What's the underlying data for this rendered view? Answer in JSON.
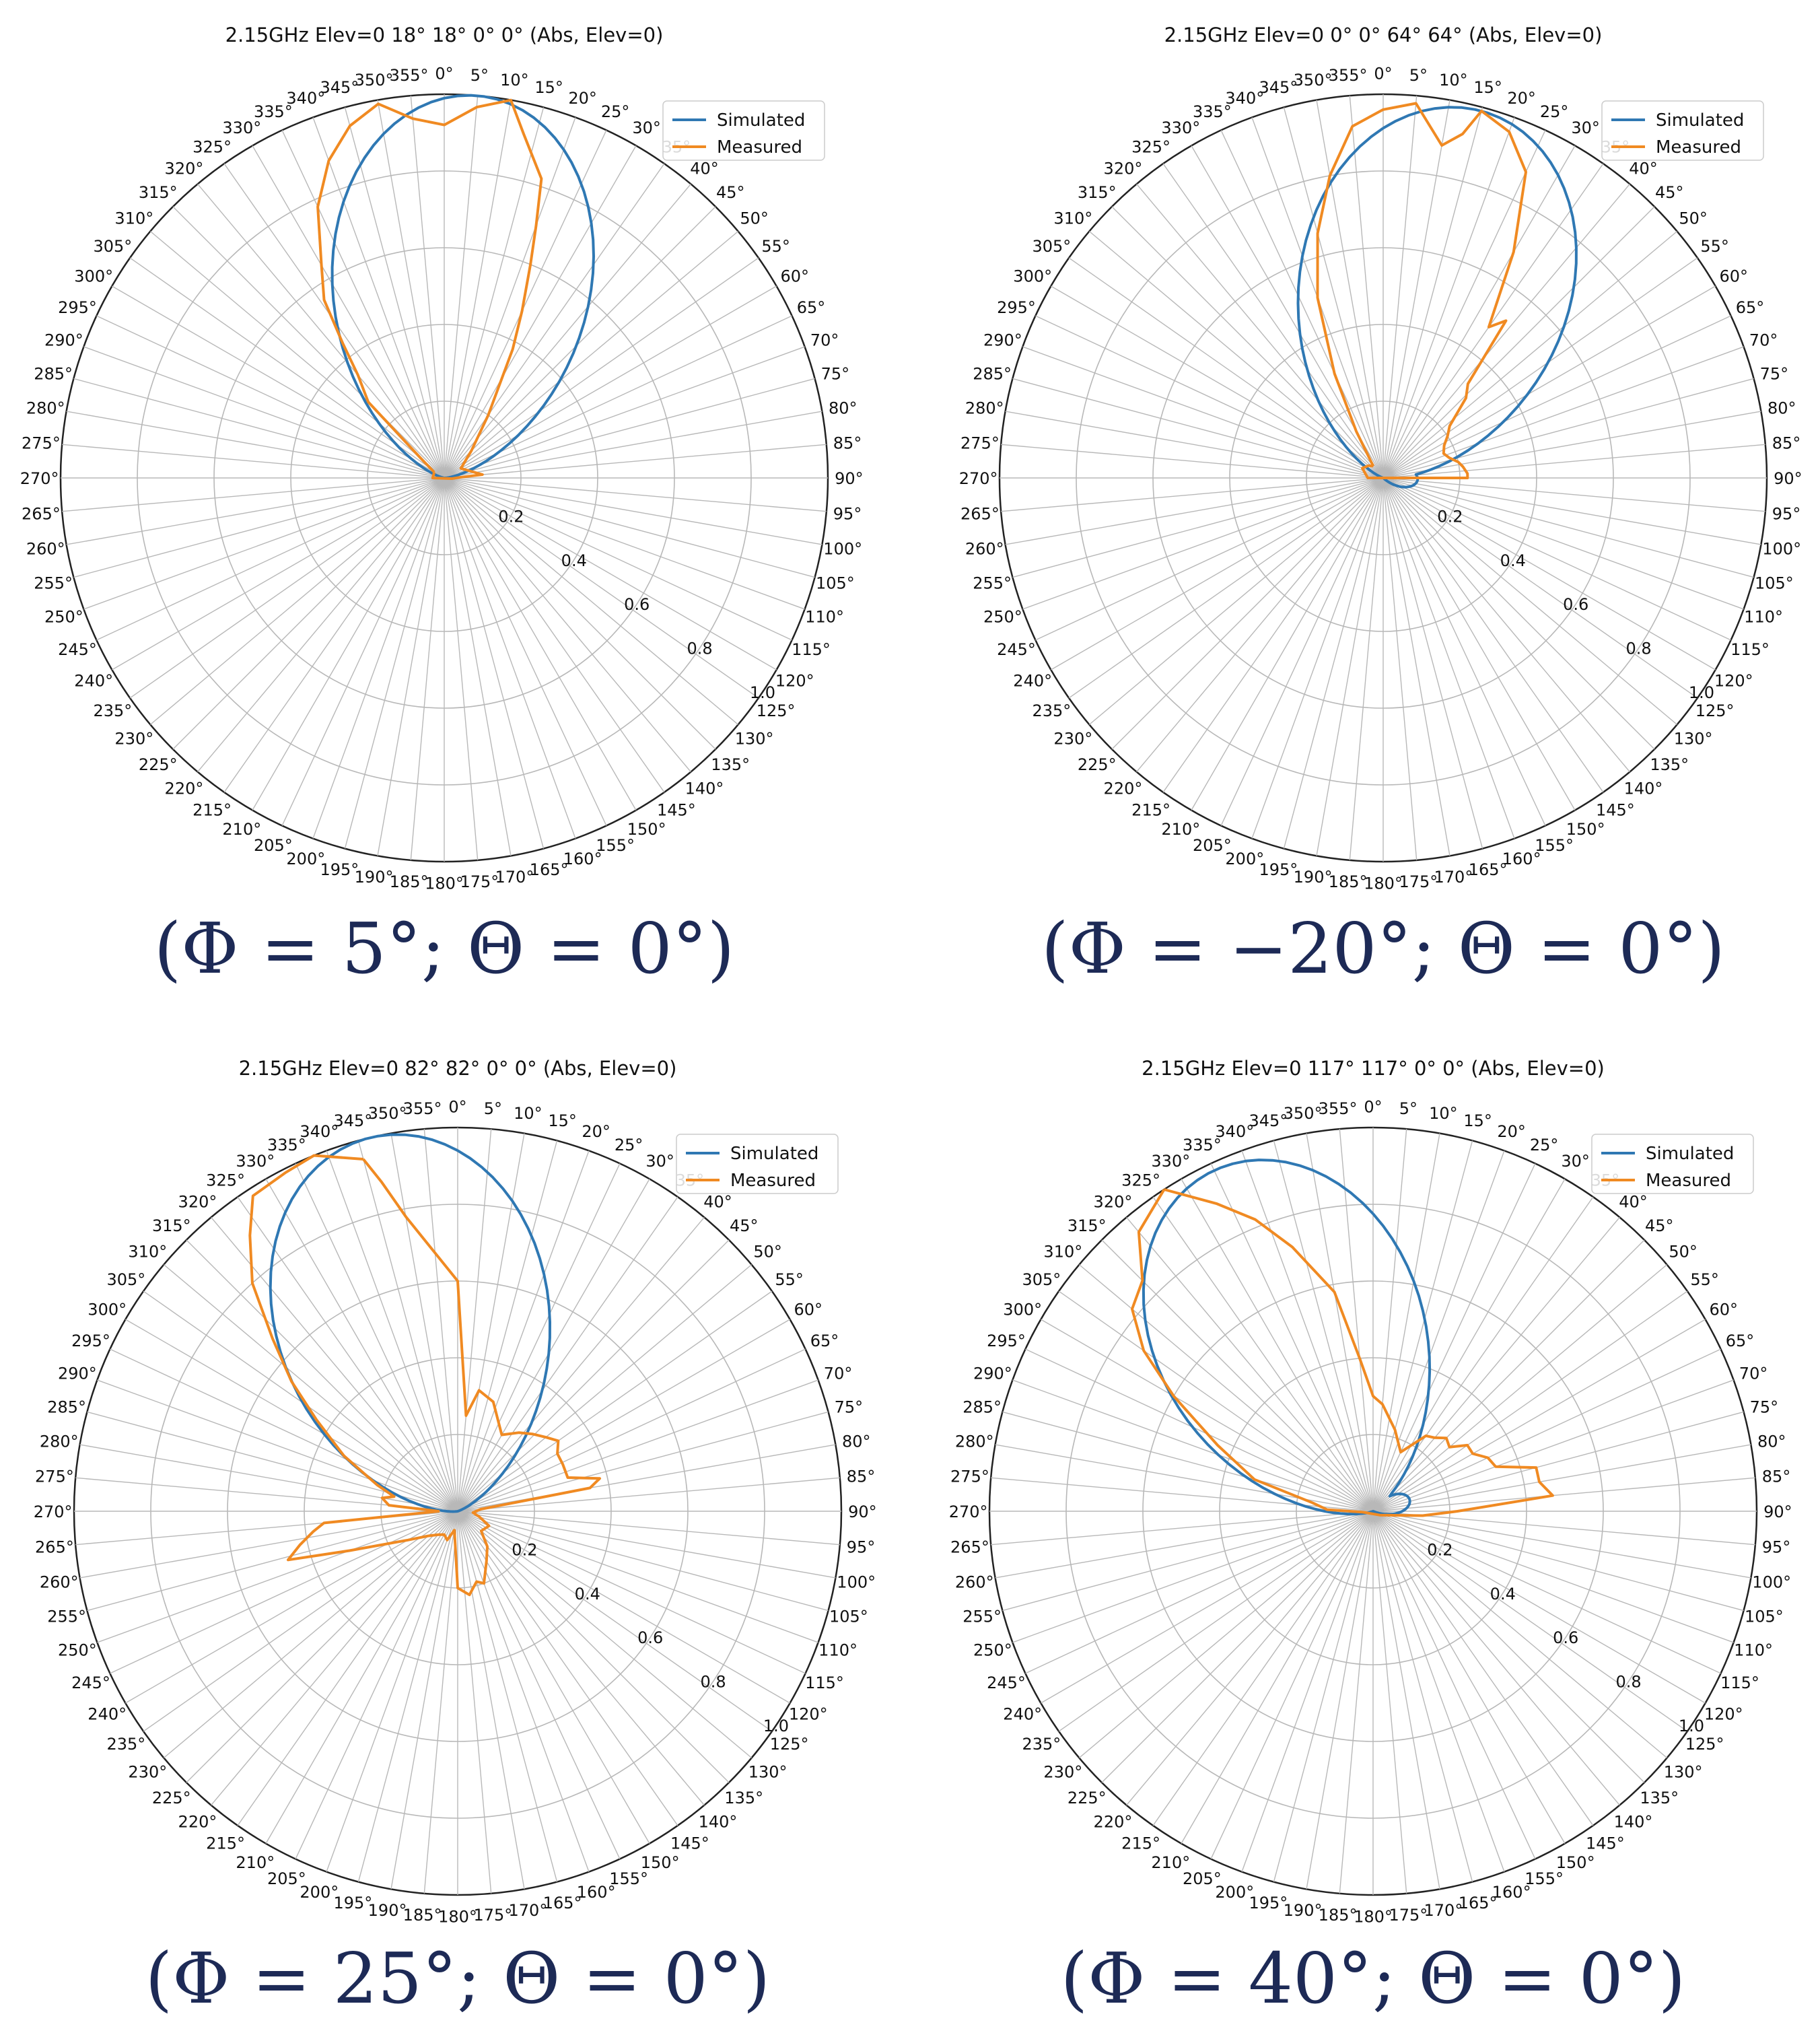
{
  "colors": {
    "simulated": "#2f78b3",
    "measured": "#f08a22",
    "grid": "#b8b8b8",
    "spine": "#222222",
    "caption": "#1d2a56"
  },
  "theta_tick_step_deg": 5,
  "r_ticks": [
    "0.2",
    "0.4",
    "0.6",
    "0.8",
    "1.0"
  ],
  "chart_data": [
    {
      "type": "line",
      "projection": "polar",
      "direction": "clockwise",
      "zero_at": "top",
      "title": "2.15GHz Elev=0 18° 18° 0° 0° (Abs, Elev=0)",
      "caption": "(Φ = 5°; Θ = 0°)",
      "rlim": [
        0,
        1
      ],
      "grid": true,
      "legend": "top-right",
      "series": [
        {
          "name": "Simulated",
          "kind": "ellipse",
          "peak_deg": 5,
          "peak": 1.0,
          "halfwidth_deg": 30,
          "side": 0,
          "side_peak_deg": 0
        },
        {
          "name": "Measured",
          "points": [
            [
              300,
              0.03
            ],
            [
              310,
              0.08
            ],
            [
              315,
              0.28
            ],
            [
              320,
              0.35
            ],
            [
              323,
              0.44
            ],
            [
              326,
              0.56
            ],
            [
              330,
              0.64
            ],
            [
              335,
              0.78
            ],
            [
              340,
              0.88
            ],
            [
              345,
              0.95
            ],
            [
              350,
              0.99
            ],
            [
              355,
              0.94
            ],
            [
              0,
              0.92
            ],
            [
              5,
              0.97
            ],
            [
              10,
              1.0
            ],
            [
              13,
              0.92
            ],
            [
              18,
              0.82
            ],
            [
              20,
              0.7
            ],
            [
              22,
              0.6
            ],
            [
              25,
              0.48
            ],
            [
              28,
              0.38
            ],
            [
              35,
              0.2
            ],
            [
              45,
              0.1
            ],
            [
              60,
              0.05
            ],
            [
              85,
              0.1
            ],
            [
              88,
              0.04
            ],
            [
              95,
              0.02
            ],
            [
              270,
              0.03
            ],
            [
              300,
              0.03
            ]
          ]
        }
      ]
    },
    {
      "type": "line",
      "projection": "polar",
      "direction": "clockwise",
      "zero_at": "top",
      "title": "2.15GHz Elev=0 0° 0° 64° 64° (Abs, Elev=0)",
      "caption": "(Φ = −20°; Θ = 0°)",
      "rlim": [
        0,
        1
      ],
      "grid": true,
      "legend": "top-right",
      "series": [
        {
          "name": "Simulated",
          "kind": "ellipse",
          "peak_deg": 15,
          "peak": 0.99,
          "halfwidth_deg": 34,
          "side": 0.09,
          "side_peak_deg": 92
        },
        {
          "name": "Measured",
          "points": [
            [
              320,
              0.04
            ],
            [
              330,
              0.14
            ],
            [
              335,
              0.3
            ],
            [
              340,
              0.5
            ],
            [
              345,
              0.66
            ],
            [
              350,
              0.8
            ],
            [
              355,
              0.92
            ],
            [
              0,
              0.96
            ],
            [
              5,
              0.98
            ],
            [
              10,
              0.88
            ],
            [
              13,
              0.92
            ],
            [
              15,
              0.99
            ],
            [
              20,
              0.96
            ],
            [
              25,
              0.88
            ],
            [
              30,
              0.68
            ],
            [
              35,
              0.48
            ],
            [
              38,
              0.52
            ],
            [
              42,
              0.33
            ],
            [
              46,
              0.3
            ],
            [
              52,
              0.22
            ],
            [
              57,
              0.2
            ],
            [
              62,
              0.18
            ],
            [
              68,
              0.17
            ],
            [
              73,
              0.18
            ],
            [
              78,
              0.2
            ],
            [
              82,
              0.21
            ],
            [
              87,
              0.22
            ],
            [
              90,
              0.22
            ],
            [
              270,
              0.04
            ],
            [
              295,
              0.06
            ],
            [
              310,
              0.05
            ],
            [
              320,
              0.04
            ]
          ]
        }
      ]
    },
    {
      "type": "line",
      "projection": "polar",
      "direction": "clockwise",
      "zero_at": "top",
      "title": "2.15GHz Elev=0 82° 82° 0° 0° (Abs, Elev=0)",
      "caption": "(Φ = 25°; Θ = 0°)",
      "rlim": [
        0,
        1
      ],
      "grid": true,
      "legend": "top-right",
      "series": [
        {
          "name": "Simulated",
          "kind": "ellipse",
          "peak_deg": 347,
          "peak": 1.0,
          "halfwidth_deg": 34,
          "side": 0,
          "side_peak_deg": 0
        },
        {
          "name": "Measured",
          "points": [
            [
              345,
              0.95
            ],
            [
              338,
              1.0
            ],
            [
              333,
              0.99
            ],
            [
              327,
              0.98
            ],
            [
              323,
              0.9
            ],
            [
              318,
              0.8
            ],
            [
              313,
              0.66
            ],
            [
              308,
              0.55
            ],
            [
              303,
              0.44
            ],
            [
              296,
              0.33
            ],
            [
              288,
              0.22
            ],
            [
              283,
              0.17
            ],
            [
              280,
              0.2
            ],
            [
              275,
              0.18
            ],
            [
              270,
              0.05
            ],
            [
              265,
              0.35
            ],
            [
              262,
              0.38
            ],
            [
              258,
              0.42
            ],
            [
              254,
              0.46
            ],
            [
              250,
              0.3
            ],
            [
              240,
              0.15
            ],
            [
              230,
              0.1
            ],
            [
              220,
              0.08
            ],
            [
              210,
              0.07
            ],
            [
              200,
              0.08
            ],
            [
              190,
              0.05
            ],
            [
              180,
              0.2
            ],
            [
              172,
              0.22
            ],
            [
              165,
              0.19
            ],
            [
              160,
              0.2
            ],
            [
              150,
              0.15
            ],
            [
              140,
              0.12
            ],
            [
              130,
              0.08
            ],
            [
              115,
              0.09
            ],
            [
              105,
              0.06
            ],
            [
              95,
              0.04
            ],
            [
              85,
              0.06
            ],
            [
              80,
              0.35
            ],
            [
              77,
              0.38
            ],
            [
              73,
              0.3
            ],
            [
              66,
              0.3
            ],
            [
              60,
              0.3
            ],
            [
              55,
              0.32
            ],
            [
              50,
              0.3
            ],
            [
              44,
              0.28
            ],
            [
              38,
              0.26
            ],
            [
              30,
              0.23
            ],
            [
              18,
              0.3
            ],
            [
              10,
              0.32
            ],
            [
              5,
              0.25
            ],
            [
              0,
              0.6
            ],
            [
              350,
              0.78
            ],
            [
              347,
              0.88
            ],
            [
              345,
              0.95
            ]
          ]
        }
      ]
    },
    {
      "type": "line",
      "projection": "polar",
      "direction": "clockwise",
      "zero_at": "top",
      "title": "2.15GHz Elev=0 117° 117° 0° 0° (Abs, Elev=0)",
      "caption": "(Φ = 40°; Θ = 0°)",
      "rlim": [
        0,
        1
      ],
      "grid": true,
      "legend": "top-right",
      "series": [
        {
          "name": "Simulated",
          "kind": "ellipse",
          "peak_deg": 335,
          "peak": 0.98,
          "halfwidth_deg": 34,
          "side": 0.1,
          "side_peak_deg": 72
        },
        {
          "name": "Measured",
          "points": [
            [
              327,
              1.0
            ],
            [
              320,
              0.95
            ],
            [
              315,
              0.85
            ],
            [
              310,
              0.82
            ],
            [
              305,
              0.73
            ],
            [
              300,
              0.6
            ],
            [
              293,
              0.44
            ],
            [
              285,
              0.32
            ],
            [
              278,
              0.16
            ],
            [
              272,
              0.12
            ],
            [
              266,
              0.03
            ],
            [
              260,
              0.02
            ],
            [
              120,
              0.02
            ],
            [
              95,
              0.13
            ],
            [
              90,
              0.22
            ],
            [
              85,
              0.47
            ],
            [
              80,
              0.44
            ],
            [
              75,
              0.44
            ],
            [
              70,
              0.34
            ],
            [
              65,
              0.33
            ],
            [
              60,
              0.3
            ],
            [
              55,
              0.3
            ],
            [
              50,
              0.26
            ],
            [
              45,
              0.27
            ],
            [
              40,
              0.25
            ],
            [
              35,
              0.24
            ],
            [
              25,
              0.17
            ],
            [
              15,
              0.22
            ],
            [
              5,
              0.28
            ],
            [
              0,
              0.3
            ],
            [
              355,
              0.4
            ],
            [
              350,
              0.58
            ],
            [
              343,
              0.72
            ],
            [
              338,
              0.82
            ],
            [
              333,
              0.9
            ],
            [
              327,
              1.0
            ]
          ]
        }
      ]
    }
  ]
}
